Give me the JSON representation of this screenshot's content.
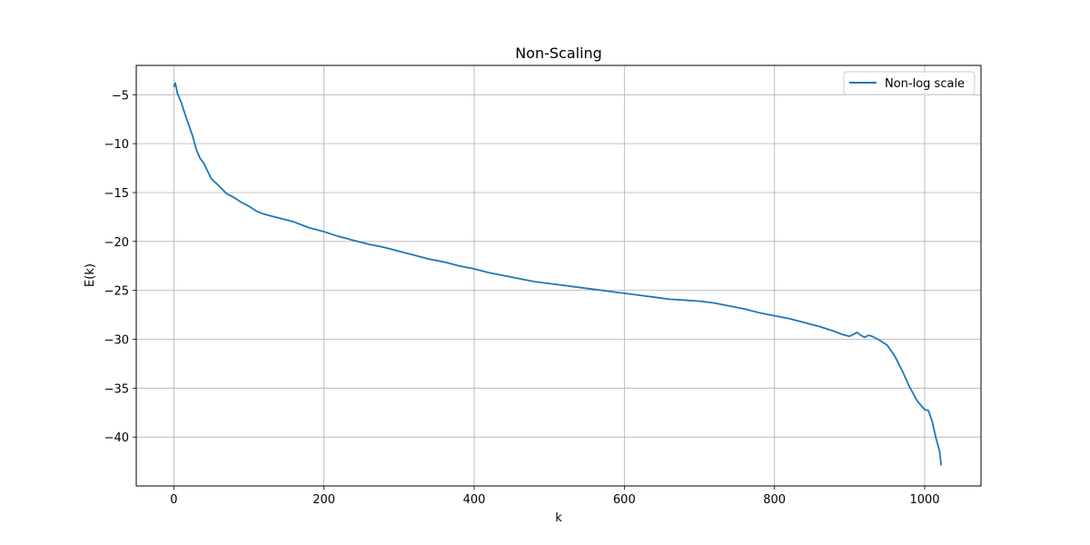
{
  "chart_data": {
    "type": "line",
    "title": "Non-Scaling",
    "xlabel": "k",
    "ylabel": "E(k)",
    "xlim": [
      -50,
      1075
    ],
    "ylim": [
      -45,
      -2
    ],
    "xticks": [
      0,
      200,
      400,
      600,
      800,
      1000
    ],
    "yticks": [
      -5,
      -10,
      -15,
      -20,
      -25,
      -30,
      -35,
      -40
    ],
    "grid": true,
    "legend_position": "top-right",
    "series": [
      {
        "name": "Non-log scale",
        "color": "#1f77b4",
        "x": [
          0,
          2,
          5,
          10,
          15,
          20,
          25,
          30,
          35,
          40,
          45,
          50,
          60,
          70,
          80,
          90,
          100,
          110,
          120,
          130,
          140,
          150,
          160,
          170,
          180,
          190,
          200,
          220,
          240,
          260,
          280,
          300,
          320,
          340,
          360,
          380,
          400,
          420,
          440,
          460,
          480,
          500,
          520,
          540,
          560,
          580,
          600,
          620,
          640,
          660,
          680,
          700,
          720,
          740,
          760,
          780,
          800,
          820,
          840,
          860,
          880,
          890,
          900,
          905,
          910,
          915,
          920,
          925,
          930,
          940,
          950,
          960,
          970,
          980,
          990,
          1000,
          1005,
          1010,
          1015,
          1020,
          1022
        ],
        "y": [
          -4.2,
          -3.8,
          -4.9,
          -5.8,
          -7.0,
          -8.1,
          -9.2,
          -10.6,
          -11.5,
          -12.0,
          -12.8,
          -13.6,
          -14.3,
          -15.1,
          -15.5,
          -16.0,
          -16.4,
          -16.9,
          -17.2,
          -17.4,
          -17.6,
          -17.8,
          -18.0,
          -18.3,
          -18.6,
          -18.8,
          -19.0,
          -19.5,
          -19.9,
          -20.3,
          -20.6,
          -21.0,
          -21.4,
          -21.8,
          -22.1,
          -22.5,
          -22.8,
          -23.2,
          -23.5,
          -23.8,
          -24.1,
          -24.3,
          -24.5,
          -24.7,
          -24.9,
          -25.1,
          -25.3,
          -25.5,
          -25.7,
          -25.9,
          -26.0,
          -26.1,
          -26.3,
          -26.6,
          -26.9,
          -27.3,
          -27.6,
          -27.9,
          -28.3,
          -28.7,
          -29.2,
          -29.5,
          -29.7,
          -29.5,
          -29.3,
          -29.6,
          -29.8,
          -29.6,
          -29.7,
          -30.1,
          -30.6,
          -31.7,
          -33.2,
          -34.9,
          -36.3,
          -37.2,
          -37.3,
          -38.4,
          -40.1,
          -41.5,
          -42.9
        ]
      }
    ]
  }
}
